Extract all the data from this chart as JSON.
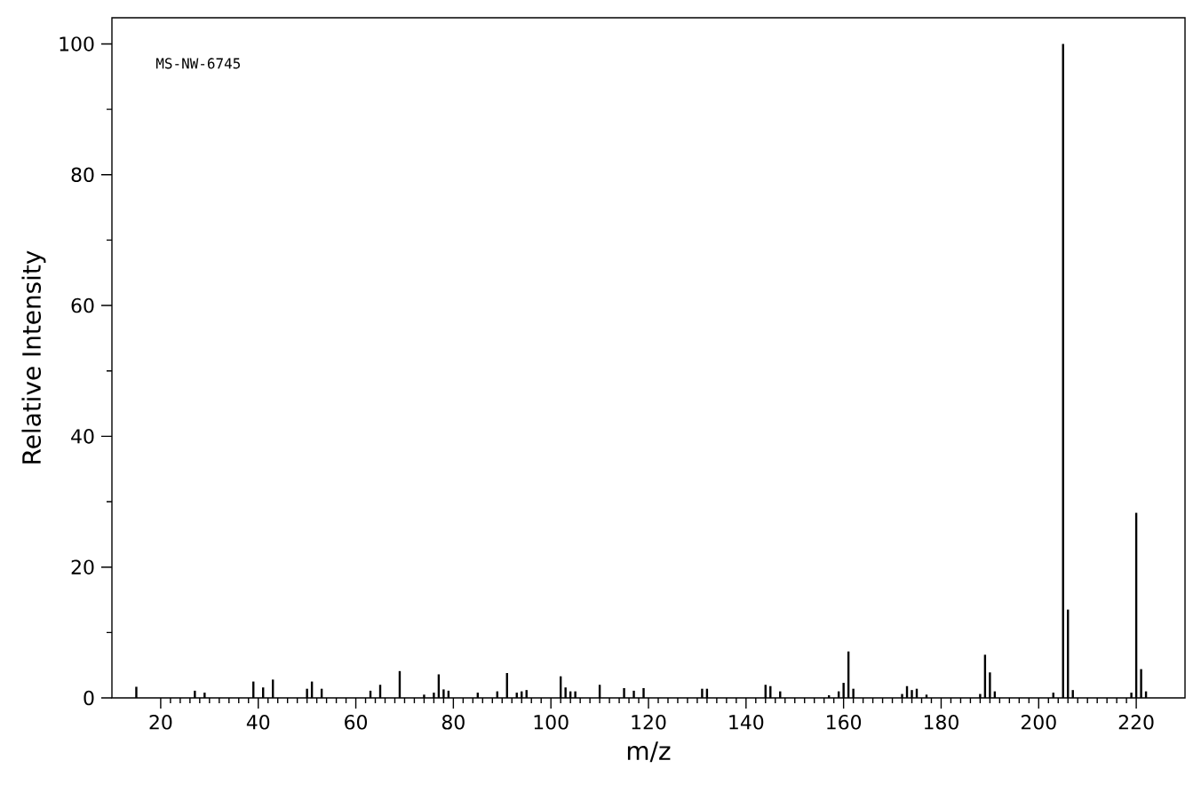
{
  "chart_data": {
    "type": "bar",
    "xlabel": "m/z",
    "ylabel": "Relative Intensity",
    "annotations": [
      "MS-NW-6745"
    ],
    "x": [
      15,
      27,
      29,
      39,
      41,
      43,
      50,
      51,
      53,
      63,
      65,
      69,
      74,
      76,
      77,
      78,
      79,
      85,
      89,
      91,
      93,
      94,
      95,
      102,
      103,
      104,
      105,
      110,
      115,
      117,
      119,
      131,
      132,
      144,
      145,
      147,
      157,
      159,
      160,
      161,
      162,
      172,
      173,
      174,
      175,
      177,
      188,
      189,
      190,
      191,
      203,
      205,
      206,
      207,
      219,
      220,
      221,
      222
    ],
    "values": [
      1.7,
      1.1,
      0.8,
      2.5,
      1.6,
      2.8,
      1.4,
      2.5,
      1.4,
      1.1,
      2.0,
      4.1,
      0.5,
      0.8,
      3.6,
      1.3,
      1.1,
      0.8,
      1.0,
      3.8,
      0.8,
      1.0,
      1.2,
      3.3,
      1.6,
      1.0,
      1.0,
      2.0,
      1.5,
      1.1,
      1.5,
      1.4,
      1.4,
      2.0,
      1.8,
      1.0,
      0.4,
      1.0,
      2.3,
      7.1,
      1.4,
      0.6,
      1.8,
      1.2,
      1.4,
      0.5,
      0.6,
      6.6,
      3.9,
      1.0,
      0.8,
      100,
      13.5,
      1.2,
      0.8,
      28.3,
      4.4,
      1.0
    ],
    "color": "#000000",
    "xlim": [
      10,
      230
    ],
    "ylim": [
      0,
      104
    ],
    "xticks": [
      20,
      40,
      60,
      80,
      100,
      120,
      140,
      160,
      180,
      200,
      220
    ],
    "yticks": [
      0,
      20,
      40,
      60,
      80,
      100
    ]
  }
}
